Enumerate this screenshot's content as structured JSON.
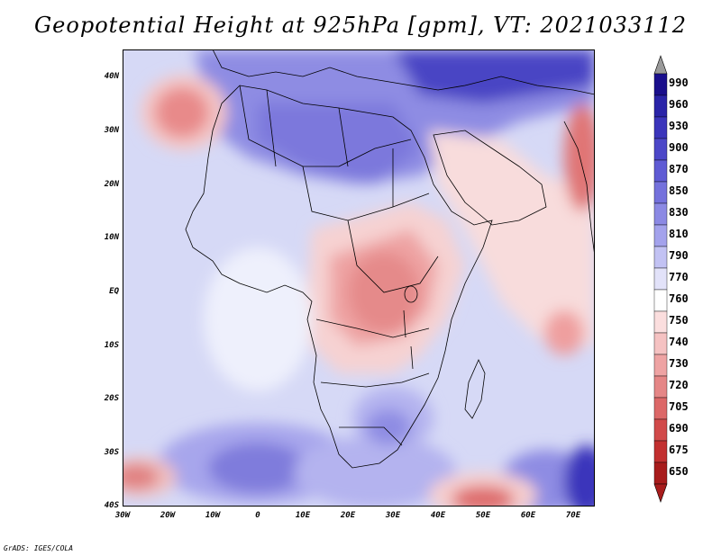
{
  "title": "Geopotential Height at 925hPa [gpm], VT: 2021033112",
  "credit": "GrADS: IGES/COLA",
  "map": {
    "region": "Africa and Middle East",
    "lon_range": [
      -30,
      75
    ],
    "lat_range": [
      -40,
      45
    ],
    "y_ticks": [
      "40N",
      "30N",
      "20N",
      "10N",
      "EQ",
      "10S",
      "20S",
      "30S",
      "40S"
    ],
    "x_ticks": [
      "30W",
      "20W",
      "10W",
      "0",
      "10E",
      "20E",
      "30E",
      "40E",
      "50E",
      "60E",
      "70E"
    ]
  },
  "colorbar": {
    "levels": [
      "990",
      "960",
      "930",
      "900",
      "870",
      "850",
      "830",
      "810",
      "790",
      "770",
      "760",
      "750",
      "740",
      "730",
      "720",
      "705",
      "690",
      "675",
      "650"
    ],
    "colors": [
      "#1a0f8c",
      "#2a24a8",
      "#3b35bb",
      "#4c47c8",
      "#5f5bd4",
      "#7471dc",
      "#8b89e4",
      "#a3a2ec",
      "#c2c2f3",
      "#e2e2f9",
      "#ffffff",
      "#fbdede",
      "#f5c2c2",
      "#eea3a3",
      "#e58686",
      "#dc6868",
      "#d14a4a",
      "#c23030",
      "#a81c1c"
    ],
    "over_color": "#9a9a9a",
    "under_color": "#a81c1c"
  },
  "fields": {
    "background": "#d9dcf7",
    "high_heights": "#6c6ad8",
    "low_heights": "#eea3a3",
    "coast": "#000000"
  }
}
